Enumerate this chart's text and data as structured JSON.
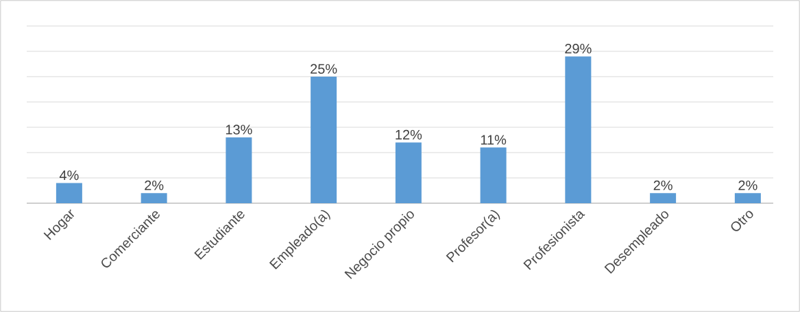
{
  "chart_data": {
    "type": "bar",
    "categories": [
      "Hogar",
      "Comerciante",
      "Estudiante",
      "Empleado(a)",
      "Negocio propio",
      "Profesor(a)",
      "Profesionista",
      "Desempleado",
      "Otro"
    ],
    "values": [
      4,
      2,
      13,
      25,
      12,
      11,
      29,
      2,
      2
    ],
    "value_labels": [
      "4%",
      "2%",
      "13%",
      "25%",
      "12%",
      "11%",
      "29%",
      "2%",
      "2%"
    ],
    "color": "#5b9bd5",
    "ylim": [
      0,
      35
    ],
    "yticks": [
      {
        "value": 0,
        "label": null
      },
      {
        "value": 5,
        "label": null
      },
      {
        "value": 10,
        "label": null
      },
      {
        "value": 15,
        "label": null
      },
      {
        "value": 20,
        "label": null
      },
      {
        "value": 25,
        "label": null
      },
      {
        "value": 30,
        "label": null
      },
      {
        "value": 35,
        "label": null
      }
    ],
    "grid": "y"
  }
}
